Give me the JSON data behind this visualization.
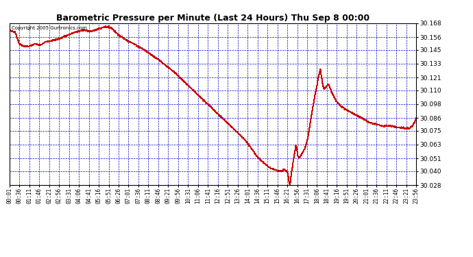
{
  "title": "Barometric Pressure per Minute (Last 24 Hours) Thu Sep 8 00:00",
  "copyright": "Copyright 2005 Gurtronics.com",
  "ylabel_values": [
    30.168,
    30.156,
    30.145,
    30.133,
    30.121,
    30.11,
    30.098,
    30.086,
    30.075,
    30.063,
    30.051,
    30.04,
    30.028
  ],
  "ylim": [
    30.028,
    30.168
  ],
  "bg_color": "#FFFFFF",
  "plot_bg_color": "#FFFFFF",
  "line_color": "#CC0000",
  "grid_color": "#0000BB",
  "title_color": "#000000",
  "x_tick_labels": [
    "00:01",
    "00:36",
    "01:11",
    "01:46",
    "02:21",
    "02:56",
    "03:31",
    "04:06",
    "04:41",
    "05:16",
    "05:51",
    "06:26",
    "07:01",
    "07:36",
    "08:11",
    "08:46",
    "09:21",
    "09:56",
    "10:31",
    "11:06",
    "11:41",
    "12:16",
    "12:51",
    "13:26",
    "14:01",
    "14:36",
    "15:11",
    "15:46",
    "16:21",
    "16:56",
    "17:31",
    "18:06",
    "18:41",
    "19:16",
    "19:51",
    "20:26",
    "21:01",
    "21:36",
    "22:11",
    "22:46",
    "23:21",
    "23:56"
  ],
  "n_points": 1440,
  "keypoints": [
    [
      0,
      30.162
    ],
    [
      20,
      30.16
    ],
    [
      35,
      30.15
    ],
    [
      50,
      30.148
    ],
    [
      70,
      30.148
    ],
    [
      90,
      30.15
    ],
    [
      110,
      30.149
    ],
    [
      130,
      30.152
    ],
    [
      150,
      30.153
    ],
    [
      170,
      30.154
    ],
    [
      200,
      30.157
    ],
    [
      230,
      30.16
    ],
    [
      260,
      30.162
    ],
    [
      290,
      30.161
    ],
    [
      315,
      30.163
    ],
    [
      340,
      30.165
    ],
    [
      360,
      30.164
    ],
    [
      385,
      30.158
    ],
    [
      410,
      30.154
    ],
    [
      440,
      30.15
    ],
    [
      470,
      30.146
    ],
    [
      500,
      30.141
    ],
    [
      530,
      30.136
    ],
    [
      560,
      30.13
    ],
    [
      590,
      30.124
    ],
    [
      620,
      30.117
    ],
    [
      650,
      30.11
    ],
    [
      680,
      30.103
    ],
    [
      710,
      30.096
    ],
    [
      740,
      30.089
    ],
    [
      770,
      30.082
    ],
    [
      800,
      30.075
    ],
    [
      830,
      30.068
    ],
    [
      855,
      30.06
    ],
    [
      875,
      30.053
    ],
    [
      900,
      30.047
    ],
    [
      920,
      30.043
    ],
    [
      940,
      30.041
    ],
    [
      955,
      30.04
    ],
    [
      965,
      30.04
    ],
    [
      970,
      30.042
    ],
    [
      975,
      30.041
    ],
    [
      978,
      30.04
    ],
    [
      982,
      30.04
    ],
    [
      984,
      30.038
    ],
    [
      986,
      30.035
    ],
    [
      988,
      30.032
    ],
    [
      990,
      30.03
    ],
    [
      991,
      30.029
    ],
    [
      992,
      30.028
    ],
    [
      993,
      30.029
    ],
    [
      994,
      30.031
    ],
    [
      996,
      30.035
    ],
    [
      998,
      30.04
    ],
    [
      1002,
      30.045
    ],
    [
      1006,
      30.052
    ],
    [
      1010,
      30.057
    ],
    [
      1013,
      30.063
    ],
    [
      1016,
      30.06
    ],
    [
      1019,
      30.055
    ],
    [
      1022,
      30.052
    ],
    [
      1028,
      30.052
    ],
    [
      1035,
      30.055
    ],
    [
      1045,
      30.06
    ],
    [
      1055,
      30.068
    ],
    [
      1065,
      30.083
    ],
    [
      1075,
      30.098
    ],
    [
      1082,
      30.108
    ],
    [
      1087,
      30.113
    ],
    [
      1092,
      30.12
    ],
    [
      1097,
      30.125
    ],
    [
      1100,
      30.128
    ],
    [
      1104,
      30.122
    ],
    [
      1108,
      30.115
    ],
    [
      1112,
      30.111
    ],
    [
      1118,
      30.112
    ],
    [
      1123,
      30.114
    ],
    [
      1128,
      30.115
    ],
    [
      1133,
      30.113
    ],
    [
      1140,
      30.108
    ],
    [
      1155,
      30.101
    ],
    [
      1170,
      30.097
    ],
    [
      1185,
      30.094
    ],
    [
      1200,
      30.092
    ],
    [
      1215,
      30.09
    ],
    [
      1230,
      30.088
    ],
    [
      1245,
      30.086
    ],
    [
      1260,
      30.084
    ],
    [
      1275,
      30.082
    ],
    [
      1290,
      30.081
    ],
    [
      1305,
      30.08
    ],
    [
      1320,
      30.079
    ],
    [
      1340,
      30.079
    ],
    [
      1355,
      30.079
    ],
    [
      1370,
      30.078
    ],
    [
      1385,
      30.078
    ],
    [
      1400,
      30.077
    ],
    [
      1415,
      30.077
    ],
    [
      1425,
      30.079
    ],
    [
      1435,
      30.083
    ],
    [
      1439,
      30.086
    ]
  ]
}
